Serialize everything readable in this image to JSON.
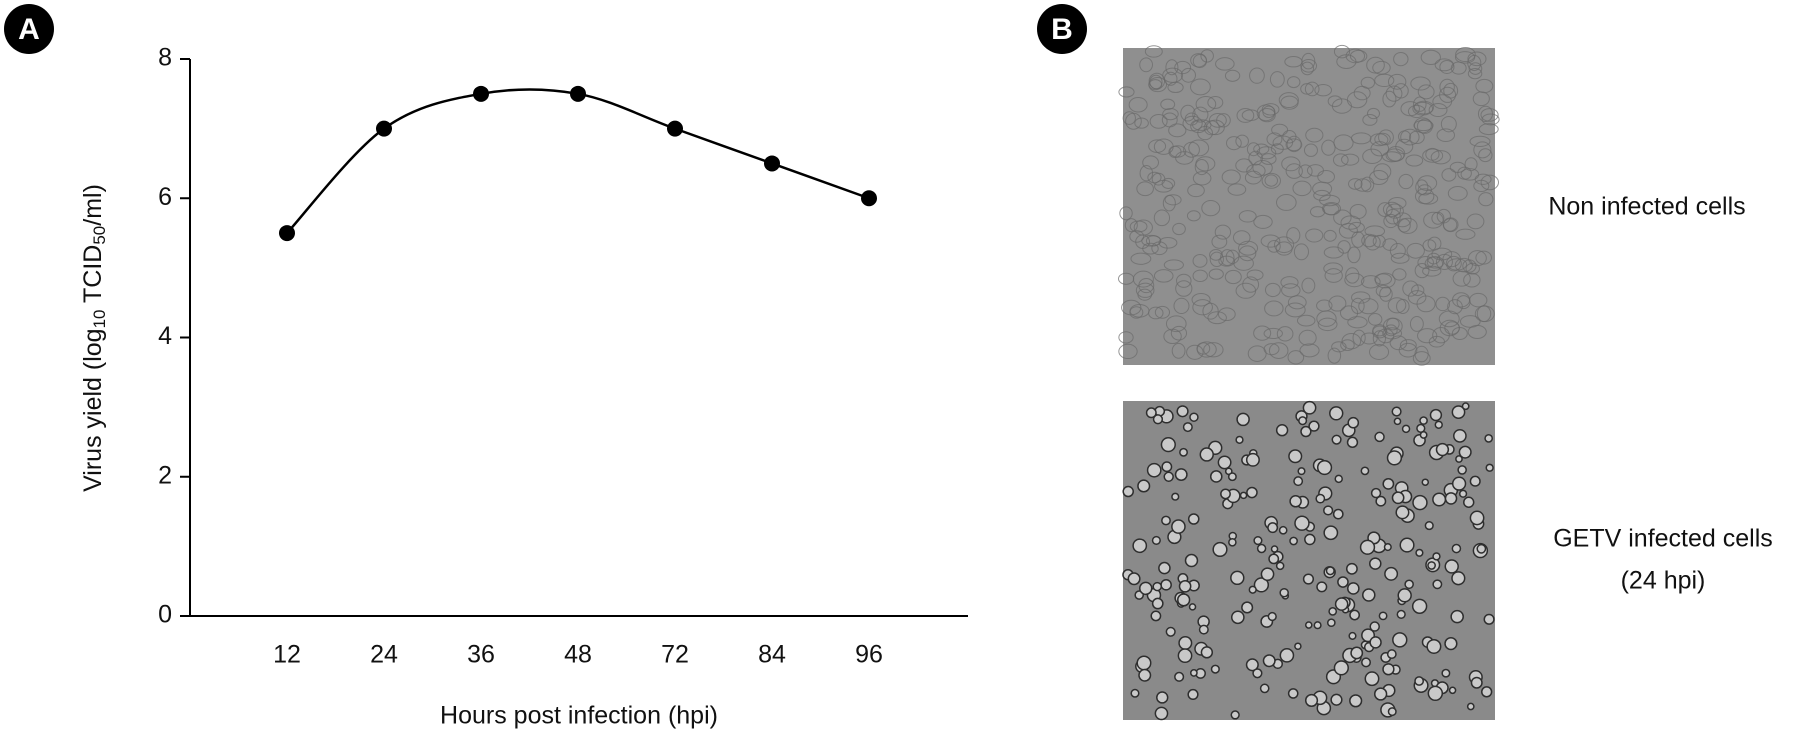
{
  "chart_data": {
    "type": "line",
    "y_label": [
      "Virus yield (log",
      "10",
      " TCID",
      "50",
      "/ml)"
    ],
    "x_label": "Hours post infection (hpi)",
    "categories": [
      "12",
      "24",
      "36",
      "48",
      "72",
      "84",
      "96"
    ],
    "values": [
      5.5,
      7,
      7.5,
      7.5,
      7,
      6.5,
      6
    ],
    "color": "#000000",
    "ylim": [
      0,
      8
    ],
    "yticks": [
      0,
      2,
      4,
      6,
      8
    ]
  },
  "panels": [
    {
      "label": "A"
    },
    {
      "label": "B"
    }
  ],
  "images": [
    {
      "caption": [
        "Non infected cells"
      ]
    },
    {
      "caption": [
        "GETV infected cells",
        "(24 hpi)"
      ]
    }
  ]
}
